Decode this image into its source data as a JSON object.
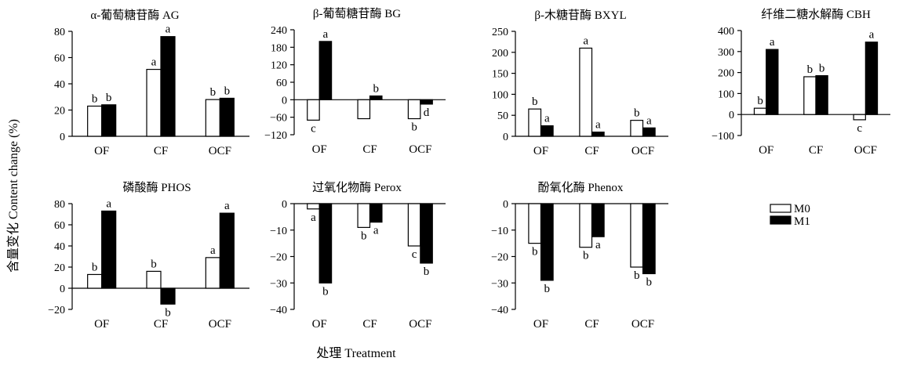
{
  "figure": {
    "ylabel": "含量变化 Content change (%)",
    "xlabel": "处理 Treatment"
  },
  "legend": {
    "items": [
      {
        "label": "M0",
        "color": "#ffffff"
      },
      {
        "label": "M1",
        "color": "#000000"
      }
    ]
  },
  "chart_data": [
    {
      "type": "bar",
      "title": "α-葡萄糖苷酶 AG",
      "categories": [
        "OF",
        "CF",
        "OCF"
      ],
      "ylim": [
        0,
        80
      ],
      "yticks": [
        "0",
        "20",
        "40",
        "60",
        "80"
      ],
      "series": [
        {
          "name": "M0",
          "values": [
            23,
            51,
            28
          ],
          "labels": [
            "b",
            "a",
            "b"
          ]
        },
        {
          "name": "M1",
          "values": [
            24,
            76,
            29
          ],
          "labels": [
            "b",
            "a",
            "b"
          ]
        }
      ]
    },
    {
      "type": "bar",
      "title": "β-葡萄糖苷酶 BG",
      "categories": [
        "OF",
        "CF",
        "OCF"
      ],
      "ylim": [
        -120,
        240
      ],
      "yticks": [
        "−120",
        "−60",
        "0",
        "60",
        "120",
        "180",
        "240"
      ],
      "series": [
        {
          "name": "M0",
          "values": [
            -70,
            -65,
            -65
          ],
          "labels": [
            "c",
            "",
            "b"
          ]
        },
        {
          "name": "M1",
          "values": [
            200,
            13,
            -15
          ],
          "labels": [
            "a",
            "b",
            "d"
          ]
        }
      ]
    },
    {
      "type": "bar",
      "title": "β-木糖苷酶 BXYL",
      "categories": [
        "OF",
        "CF",
        "OCF"
      ],
      "ylim": [
        0,
        250
      ],
      "yticks": [
        "0",
        "50",
        "100",
        "150",
        "200",
        "250"
      ],
      "series": [
        {
          "name": "M0",
          "values": [
            65,
            210,
            38
          ],
          "labels": [
            "b",
            "a",
            "b"
          ]
        },
        {
          "name": "M1",
          "values": [
            25,
            10,
            20
          ],
          "labels": [
            "a",
            "a",
            "a"
          ]
        }
      ]
    },
    {
      "type": "bar",
      "title": "纤维二糖水解酶 CBH",
      "categories": [
        "OF",
        "CF",
        "OCF"
      ],
      "ylim": [
        -100,
        400
      ],
      "yticks": [
        "−100",
        "0",
        "100",
        "200",
        "300",
        "400"
      ],
      "series": [
        {
          "name": "M0",
          "values": [
            30,
            180,
            -25
          ],
          "labels": [
            "b",
            "b",
            "c"
          ]
        },
        {
          "name": "M1",
          "values": [
            310,
            185,
            345
          ],
          "labels": [
            "a",
            "b",
            "a"
          ]
        }
      ]
    },
    {
      "type": "bar",
      "title": "磷酸酶 PHOS",
      "categories": [
        "OF",
        "CF",
        "OCF"
      ],
      "ylim": [
        -20,
        80
      ],
      "yticks": [
        "−20",
        "0",
        "20",
        "40",
        "60",
        "80"
      ],
      "series": [
        {
          "name": "M0",
          "values": [
            13,
            16,
            29
          ],
          "labels": [
            "b",
            "b",
            "a"
          ]
        },
        {
          "name": "M1",
          "values": [
            73,
            -15,
            71
          ],
          "labels": [
            "a",
            "b",
            "a"
          ]
        }
      ]
    },
    {
      "type": "bar",
      "title": "过氧化物酶 Perox",
      "categories": [
        "OF",
        "CF",
        "OCF"
      ],
      "ylim": [
        -40,
        0
      ],
      "yticks": [
        "−40",
        "−30",
        "−20",
        "−10",
        "0"
      ],
      "series": [
        {
          "name": "M0",
          "values": [
            -2,
            -9,
            -16
          ],
          "labels": [
            "a",
            "b",
            "c"
          ]
        },
        {
          "name": "M1",
          "values": [
            -30,
            -7,
            -22.5
          ],
          "labels": [
            "b",
            "a",
            "b"
          ]
        }
      ]
    },
    {
      "type": "bar",
      "title": "酚氧化酶 Phenox",
      "categories": [
        "OF",
        "CF",
        "OCF"
      ],
      "ylim": [
        -40,
        0
      ],
      "yticks": [
        "−40",
        "−30",
        "−20",
        "−10",
        "0"
      ],
      "series": [
        {
          "name": "M0",
          "values": [
            -15,
            -16.5,
            -24
          ],
          "labels": [
            "b",
            "b",
            "b"
          ]
        },
        {
          "name": "M1",
          "values": [
            -29,
            -12.5,
            -26.5
          ],
          "labels": [
            "b",
            "a",
            "b"
          ]
        }
      ]
    }
  ]
}
